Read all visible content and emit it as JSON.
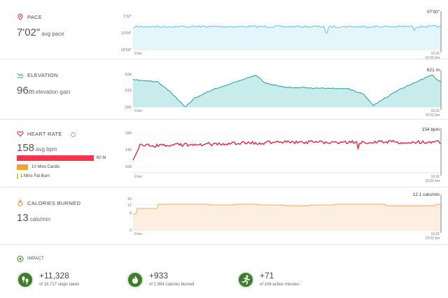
{
  "pace": {
    "title": "PACE",
    "value_main": "7'02\"",
    "unit": "avg pace",
    "peak_label": "07'00\"",
    "y_ticks": [
      "1'32\"",
      "10'04\"",
      "18'58\""
    ],
    "x_start": "0 km",
    "x_end_top": "10.01",
    "x_end_bottom": "10.01 km",
    "line_color": "#5fc6e8",
    "fill_color": "#e4f5fb"
  },
  "elevation": {
    "title": "ELEVATION",
    "value_main": "96",
    "value_suffix": "m",
    "unit": "elevation gain",
    "peak_label": "621 m",
    "y_ticks": [
      "634",
      "615",
      "596"
    ],
    "x_start": "0 km",
    "x_end_top": "10.01",
    "x_end_bottom": "10.01 km",
    "line_color": "#1a9fa3",
    "fill_color": "#c8ecec"
  },
  "heart_rate": {
    "title": "HEART RATE",
    "value_main": "158",
    "unit": "avg bpm",
    "peak_label": "154 bpm",
    "y_ticks": [
      "180",
      "140",
      "100"
    ],
    "x_start": "0 km",
    "x_end_top": "10.01",
    "x_end_bottom": "10.01 km",
    "line_color": "#e5283d",
    "zones": [
      {
        "label": "60 M",
        "color": "#f4354e",
        "fraction": 1.0
      },
      {
        "label": "10 Mins Cardio",
        "color": "#f4a32a",
        "fraction": 0.14
      },
      {
        "label": "1 Mins Fat Burn",
        "color": "#f6c24a",
        "fraction": 0.02
      }
    ]
  },
  "calories": {
    "title": "CALORIES BURNED",
    "value_main": "13",
    "unit": "cals/min",
    "peak_label": "12.1 cals/min",
    "y_ticks": [
      "16",
      "12",
      "8",
      "0"
    ],
    "x_start": "0 km",
    "x_end_top": "10.01",
    "x_end_bottom": "10.01 km",
    "line_color": "#f0a95a",
    "fill_color": "#fcefe2"
  },
  "impact": {
    "title": "IMPACT",
    "items": [
      {
        "value": "+11,328",
        "sub": "of 18,717 steps taken",
        "icon": "footsteps-icon"
      },
      {
        "value": "+933",
        "sub": "of 2,994 calories burned",
        "icon": "flame-icon"
      },
      {
        "value": "+71",
        "sub": "of 106 active minutes",
        "icon": "runner-icon"
      }
    ]
  },
  "colors": {
    "pace_icon": "#e5283d",
    "accent_green": "#3d7d2b"
  }
}
